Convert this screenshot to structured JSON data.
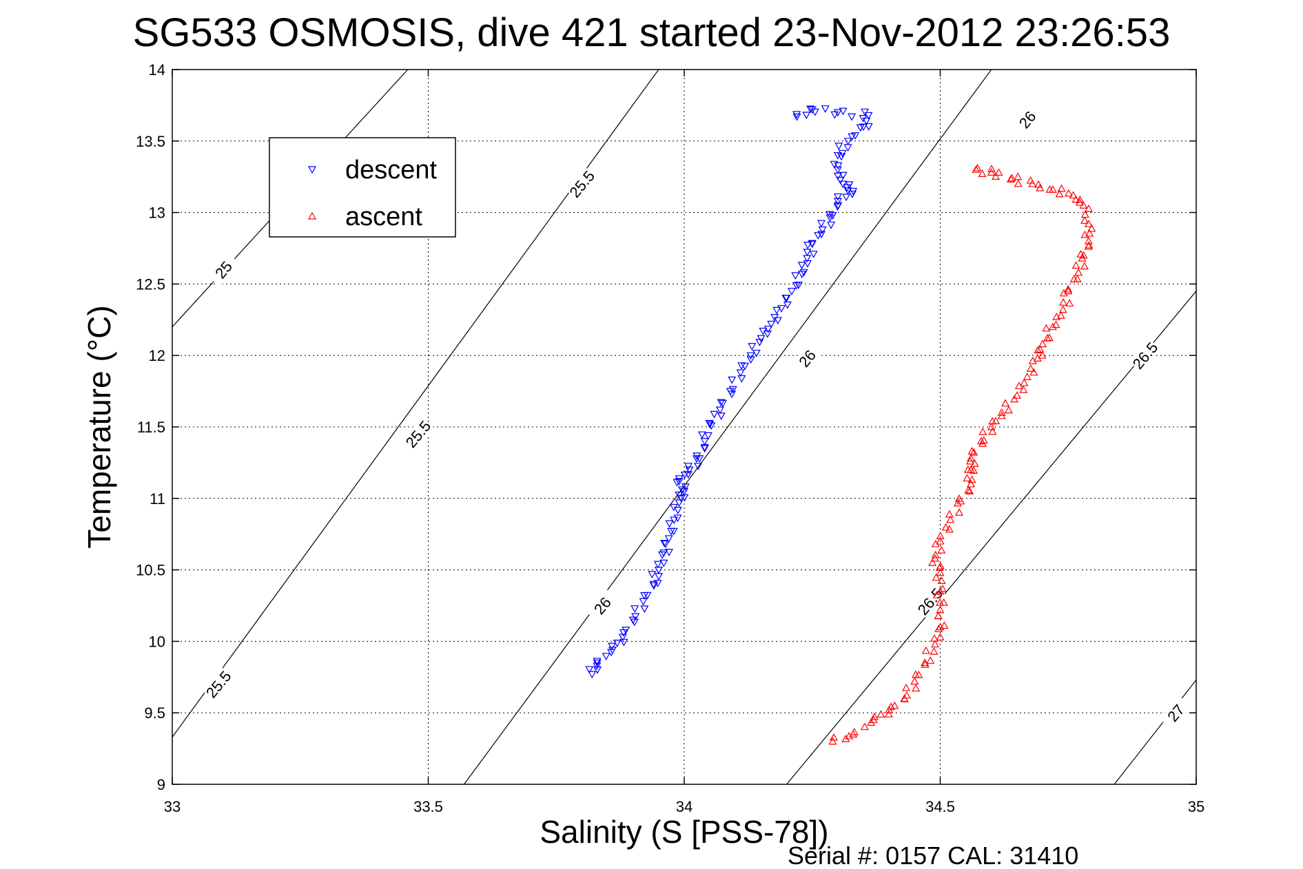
{
  "chart_data": {
    "type": "scatter",
    "title": "SG533 OSMOSIS, dive 421 started 23-Nov-2012 23:26:53",
    "xlabel": "Salinity (S [PSS-78])",
    "ylabel": "Temperature (°C)",
    "xlim": [
      33,
      35
    ],
    "ylim": [
      9,
      14
    ],
    "xticks": [
      "33",
      "33.5",
      "34",
      "34.5",
      "35"
    ],
    "yticks": [
      "9",
      "9.5",
      "10",
      "10.5",
      "11",
      "11.5",
      "12",
      "12.5",
      "13",
      "13.5",
      "14"
    ],
    "grid": true,
    "legend_position": "top-left",
    "footer": "Serial #: 0157  CAL: 31410",
    "colors": {
      "descent": "#0000ff",
      "ascent": "#ff0000"
    },
    "series": [
      {
        "name": "descent",
        "marker": "triangle-down",
        "points": [
          [
            33.82,
            9.77
          ],
          [
            33.83,
            9.85
          ],
          [
            33.86,
            9.94
          ],
          [
            33.88,
            10.03
          ],
          [
            33.9,
            10.15
          ],
          [
            33.92,
            10.28
          ],
          [
            33.94,
            10.4
          ],
          [
            33.95,
            10.5
          ],
          [
            33.96,
            10.62
          ],
          [
            33.97,
            10.72
          ],
          [
            33.98,
            10.85
          ],
          [
            33.99,
            10.97
          ],
          [
            34.0,
            11.05
          ],
          [
            33.99,
            11.12
          ],
          [
            34.01,
            11.2
          ],
          [
            34.03,
            11.28
          ],
          [
            34.04,
            11.4
          ],
          [
            34.05,
            11.52
          ],
          [
            34.07,
            11.62
          ],
          [
            34.09,
            11.75
          ],
          [
            34.11,
            11.88
          ],
          [
            34.13,
            12.0
          ],
          [
            34.15,
            12.12
          ],
          [
            34.17,
            12.22
          ],
          [
            34.19,
            12.33
          ],
          [
            34.21,
            12.45
          ],
          [
            34.23,
            12.57
          ],
          [
            34.24,
            12.68
          ],
          [
            34.25,
            12.78
          ],
          [
            34.27,
            12.88
          ],
          [
            34.29,
            12.98
          ],
          [
            34.3,
            13.08
          ],
          [
            34.33,
            13.15
          ],
          [
            34.31,
            13.2
          ],
          [
            34.3,
            13.3
          ],
          [
            34.3,
            13.4
          ],
          [
            34.32,
            13.5
          ],
          [
            34.35,
            13.6
          ],
          [
            34.36,
            13.68
          ],
          [
            34.3,
            13.7
          ],
          [
            34.25,
            13.72
          ],
          [
            34.22,
            13.67
          ]
        ]
      },
      {
        "name": "ascent",
        "marker": "triangle-up",
        "points": [
          [
            34.29,
            9.3
          ],
          [
            34.33,
            9.35
          ],
          [
            34.37,
            9.45
          ],
          [
            34.4,
            9.52
          ],
          [
            34.43,
            9.6
          ],
          [
            34.45,
            9.72
          ],
          [
            34.47,
            9.85
          ],
          [
            34.49,
            9.98
          ],
          [
            34.5,
            10.1
          ],
          [
            34.5,
            10.22
          ],
          [
            34.5,
            10.35
          ],
          [
            34.5,
            10.48
          ],
          [
            34.49,
            10.58
          ],
          [
            34.5,
            10.7
          ],
          [
            34.52,
            10.85
          ],
          [
            34.54,
            10.98
          ],
          [
            34.56,
            11.1
          ],
          [
            34.56,
            11.2
          ],
          [
            34.56,
            11.28
          ],
          [
            34.58,
            11.4
          ],
          [
            34.6,
            11.5
          ],
          [
            34.62,
            11.6
          ],
          [
            34.65,
            11.72
          ],
          [
            34.67,
            11.85
          ],
          [
            34.69,
            11.98
          ],
          [
            34.7,
            12.08
          ],
          [
            34.72,
            12.2
          ],
          [
            34.74,
            12.32
          ],
          [
            34.75,
            12.45
          ],
          [
            34.77,
            12.58
          ],
          [
            34.78,
            12.7
          ],
          [
            34.79,
            12.8
          ],
          [
            34.79,
            12.92
          ],
          [
            34.78,
            13.05
          ],
          [
            34.76,
            13.12
          ],
          [
            34.72,
            13.16
          ],
          [
            34.68,
            13.2
          ],
          [
            34.64,
            13.24
          ],
          [
            34.6,
            13.28
          ],
          [
            34.57,
            13.3
          ]
        ]
      }
    ],
    "isopycnals": [
      {
        "label": "25",
        "points": [
          [
            33.0,
            12.2
          ],
          [
            33.46,
            14.0
          ]
        ]
      },
      {
        "label": "25.5",
        "points": [
          [
            33.0,
            9.33
          ],
          [
            33.95,
            14.0
          ]
        ]
      },
      {
        "label": "26",
        "points": [
          [
            33.57,
            9.0
          ],
          [
            34.6,
            14.0
          ]
        ]
      },
      {
        "label": "26.5",
        "points": [
          [
            34.2,
            9.0
          ],
          [
            35.0,
            12.45
          ]
        ]
      },
      {
        "label": "27",
        "points": [
          [
            34.84,
            9.0
          ],
          [
            35.0,
            9.73
          ]
        ]
      }
    ],
    "contour_labels": [
      {
        "text": "25",
        "x": 33.1,
        "y": 12.6
      },
      {
        "text": "25.5",
        "x": 33.8,
        "y": 13.2
      },
      {
        "text": "25.5",
        "x": 33.48,
        "y": 11.45
      },
      {
        "text": "25.5",
        "x": 33.09,
        "y": 9.7
      },
      {
        "text": "26",
        "x": 34.67,
        "y": 13.65
      },
      {
        "text": "26",
        "x": 34.24,
        "y": 11.98
      },
      {
        "text": "26",
        "x": 33.84,
        "y": 10.25
      },
      {
        "text": "26.5",
        "x": 34.9,
        "y": 12.0
      },
      {
        "text": "26.5",
        "x": 34.48,
        "y": 10.28
      },
      {
        "text": "27",
        "x": 34.96,
        "y": 9.5
      }
    ]
  }
}
